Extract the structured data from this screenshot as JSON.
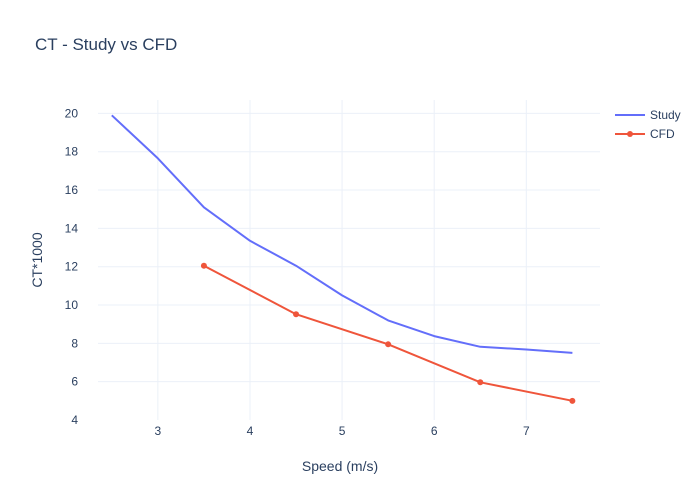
{
  "chart_data": {
    "type": "line",
    "title": "CT - Study vs CFD",
    "xlabel": "Speed (m/s)",
    "ylabel": "CT*1000",
    "xlim": [
      2.35,
      7.8
    ],
    "ylim": [
      4,
      20.7
    ],
    "xticks": [
      3,
      4,
      5,
      6,
      7
    ],
    "yticks": [
      4,
      6,
      8,
      10,
      12,
      14,
      16,
      18,
      20
    ],
    "grid": true,
    "legend_position": "top-right",
    "series": [
      {
        "name": "Study",
        "mode": "lines",
        "color": "#636efa",
        "x": [
          2.5,
          3,
          3.5,
          4,
          4.5,
          5,
          5.5,
          6,
          6.5,
          7,
          7.5
        ],
        "y": [
          19.9,
          17.65,
          15.1,
          13.35,
          12.05,
          10.5,
          9.2,
          8.38,
          7.82,
          7.68,
          7.5
        ]
      },
      {
        "name": "CFD",
        "mode": "lines+markers",
        "color": "#ef553b",
        "x": [
          3.5,
          4.5,
          5.5,
          6.5,
          7.5
        ],
        "y": [
          12.05,
          9.52,
          7.95,
          5.97,
          5.0
        ]
      }
    ]
  }
}
